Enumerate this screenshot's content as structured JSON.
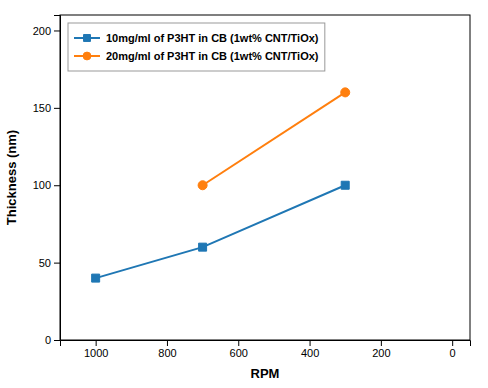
{
  "chart_data": {
    "type": "line",
    "xlabel": "RPM",
    "ylabel": "Thickness (nm)",
    "series": [
      {
        "name": "10mg/ml of P3HT in CB (1wt% CNT/TiOx)",
        "marker": "square",
        "x": [
          1000,
          700,
          300
        ],
        "values": [
          40,
          60,
          100
        ]
      },
      {
        "name": "20mg/ml of P3HT in CB (1wt% CNT/TiOx)",
        "marker": "circle",
        "x": [
          700,
          300
        ],
        "values": [
          100,
          160
        ]
      }
    ],
    "xlim": [
      1100,
      -50
    ],
    "ylim": [
      0,
      210
    ],
    "xticks": [
      1000,
      800,
      600,
      400,
      200,
      0
    ],
    "yticks": [
      0,
      50,
      100,
      150,
      200
    ],
    "legend": "upper left"
  }
}
